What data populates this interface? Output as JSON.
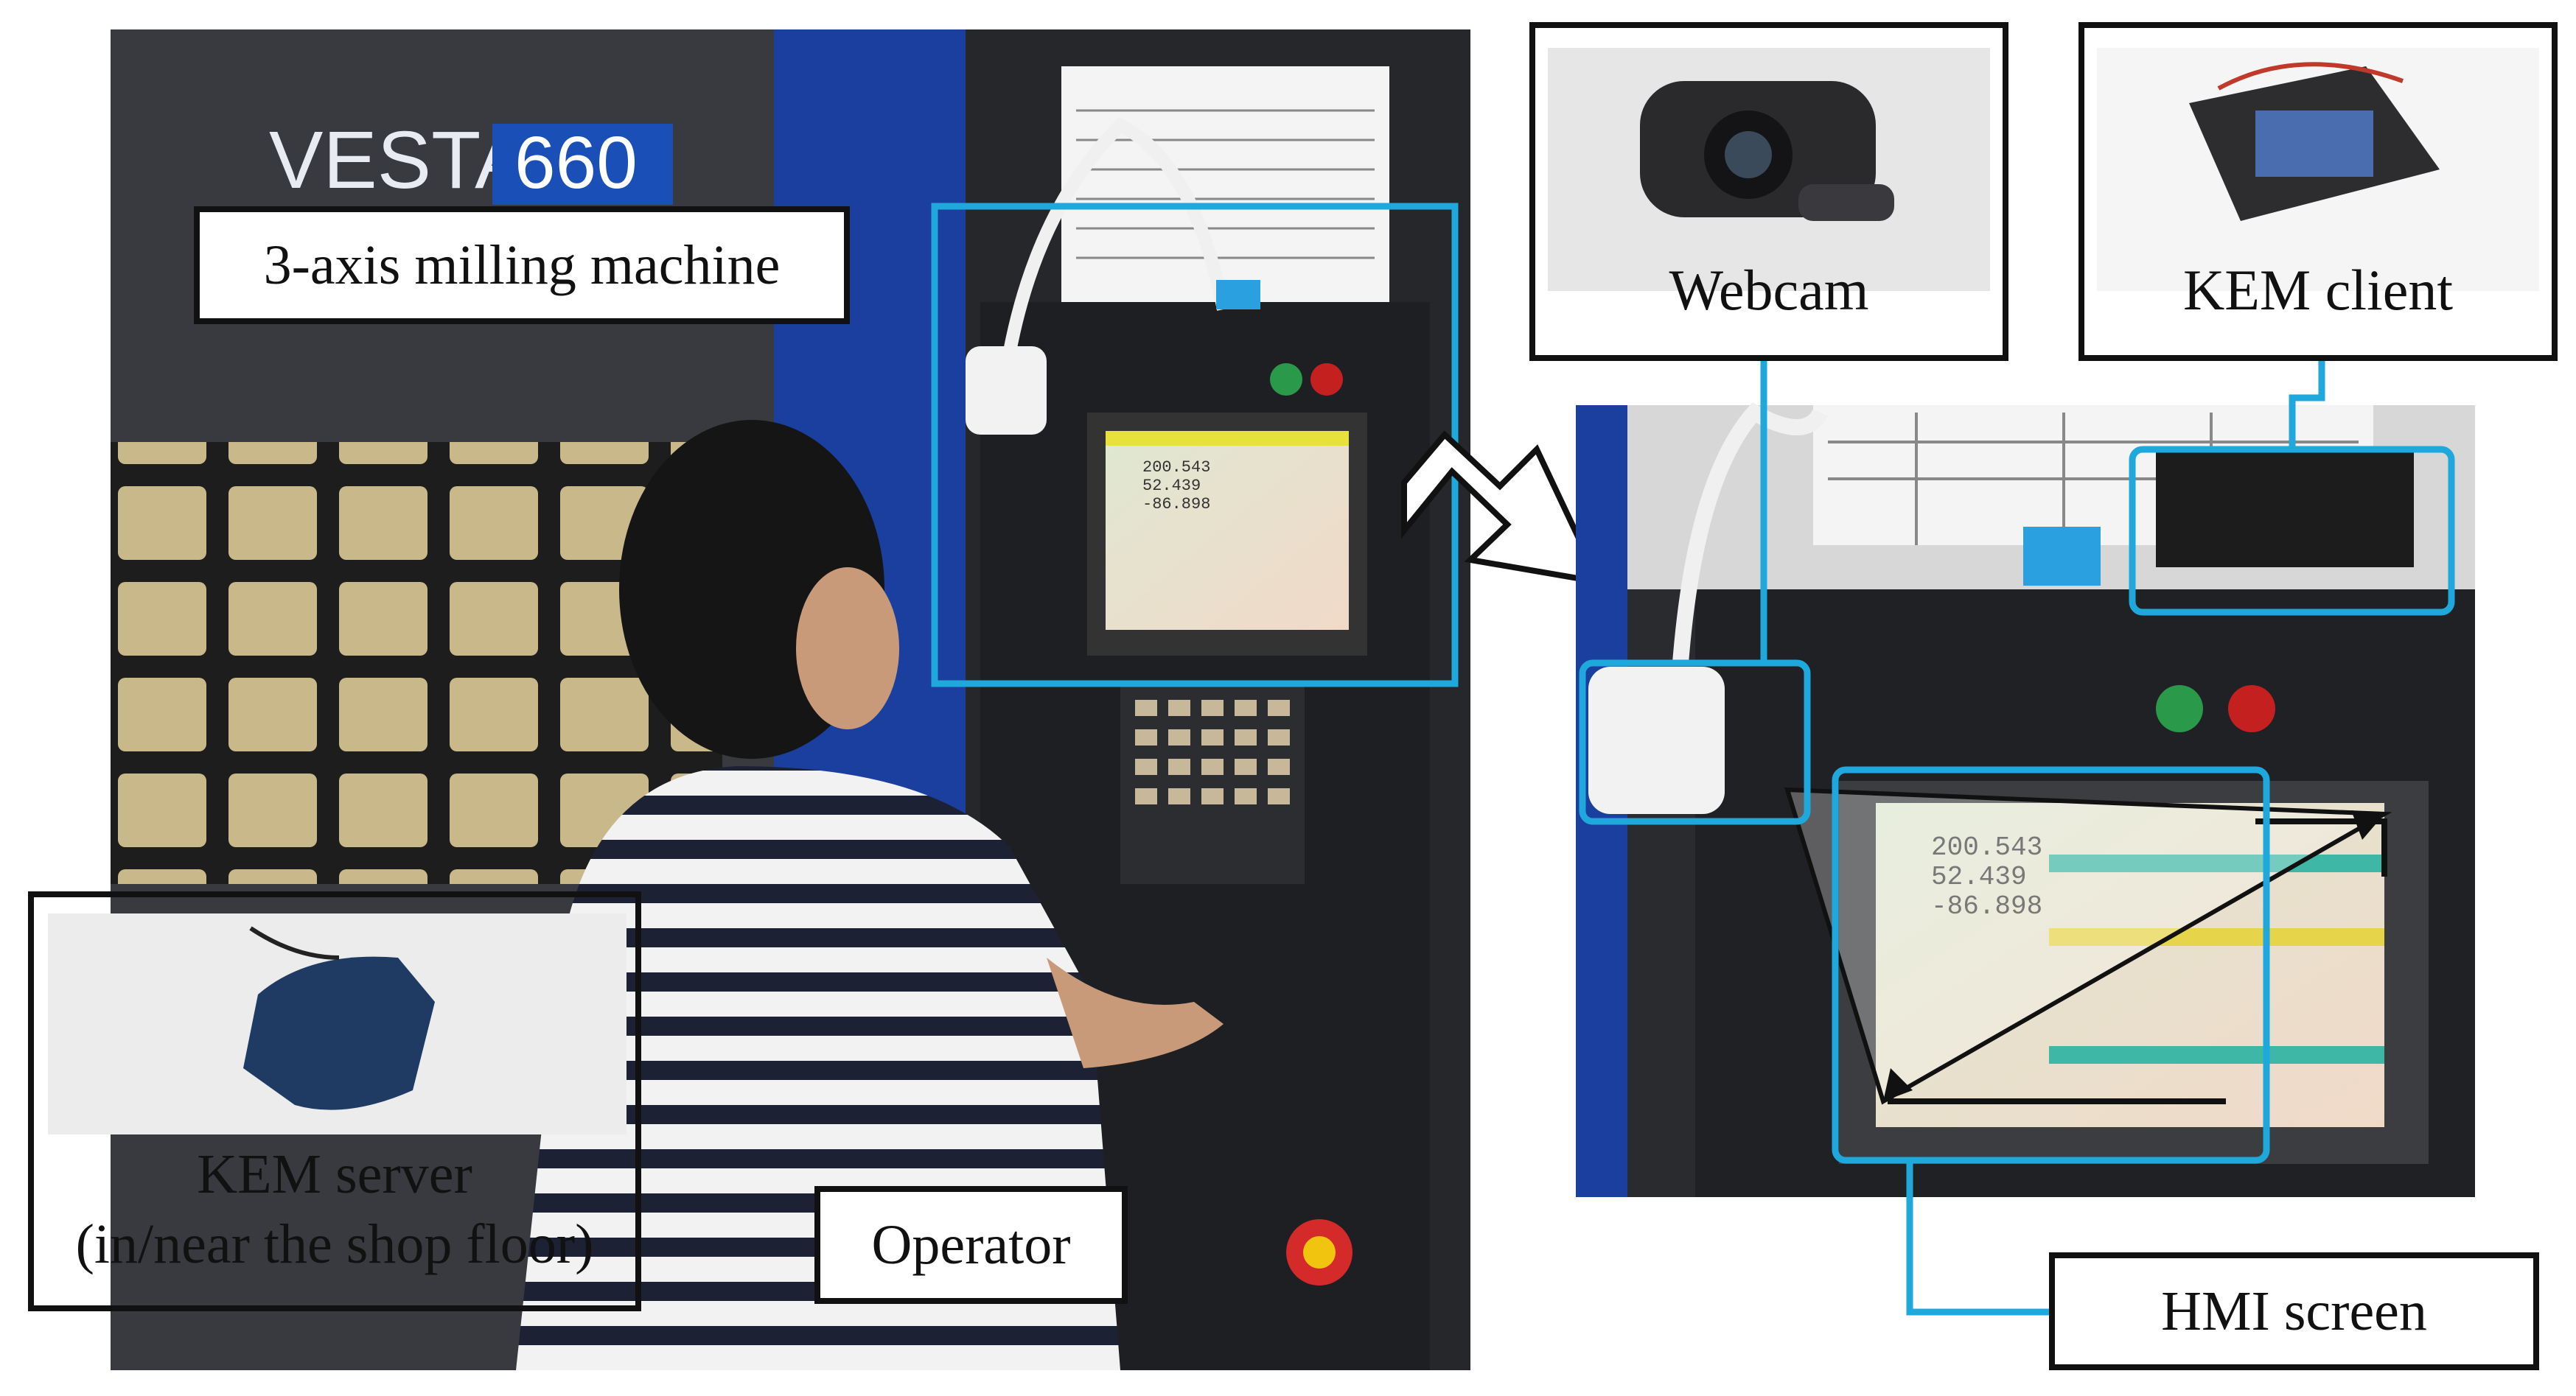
{
  "photo": {
    "machine_brand": "VESTA",
    "machine_model": "660",
    "screen_readout": [
      "200.543",
      "52.439",
      "-86.898"
    ]
  },
  "labels": {
    "milling_machine": "3-axis milling machine",
    "webcam": "Webcam",
    "kem_client": "KEM client",
    "kem_server_line1": "KEM server",
    "kem_server_line2": "(in/near the shop floor)",
    "operator": "Operator",
    "hmi_screen": "HMI screen"
  },
  "colors": {
    "highlight": "#1ea8dc",
    "machine_blue": "#1b3f9e",
    "panel_dark": "#2b2c30",
    "label_border": "#111111"
  }
}
